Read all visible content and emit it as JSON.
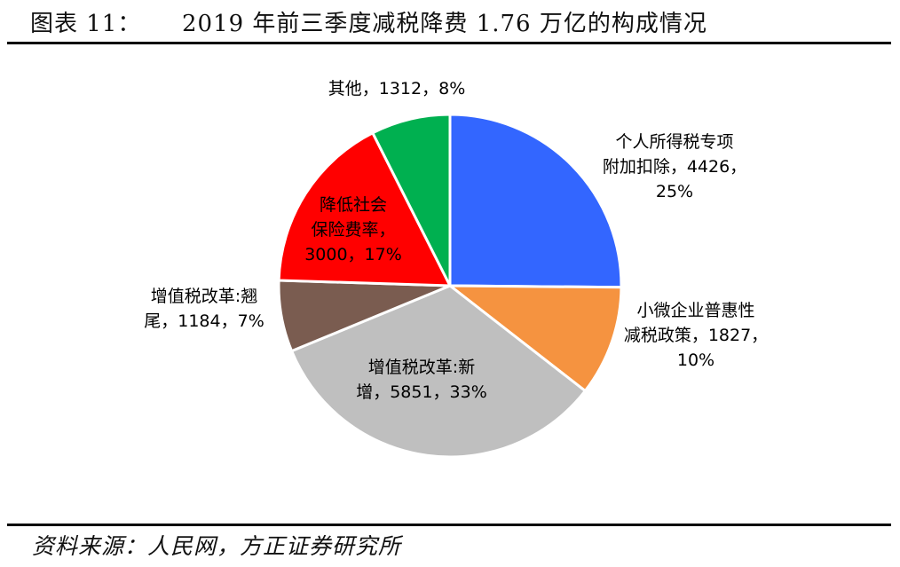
{
  "header": {
    "figure_label": "图表 11：",
    "title": "2019 年前三季度减税降费 1.76 万亿的构成情况"
  },
  "footer": {
    "source": "资料来源：人民网，方正证券研究所"
  },
  "chart_data": {
    "type": "pie",
    "title": "2019 年前三季度减税降费 1.76 万亿的构成情况",
    "slices": [
      {
        "label": "个人所得税专项附加扣除",
        "value": 4426,
        "percent": "25%",
        "color": "#3366ff",
        "label_lines": [
          "个人所得税专项",
          "附加扣除，4426，",
          "25%"
        ]
      },
      {
        "label": "小微企业普惠性减税政策",
        "value": 1827,
        "percent": "10%",
        "color": "#f59340",
        "label_lines": [
          "小微企业普惠性",
          "减税政策，1827，",
          "10%"
        ]
      },
      {
        "label": "增值税改革:新增",
        "value": 5851,
        "percent": "33%",
        "color": "#bfbfbf",
        "label_lines": [
          "增值税改革:新",
          "增，5851，33%"
        ]
      },
      {
        "label": "增值税改革:翘尾",
        "value": 1184,
        "percent": "7%",
        "color": "#7a5c50",
        "label_lines": [
          "增值税改革:翘",
          "尾，1184，7%"
        ]
      },
      {
        "label": "降低社会保险费率",
        "value": 3000,
        "percent": "17%",
        "color": "#ff0000",
        "label_lines": [
          "降低社会",
          "保险费率，",
          "3000，17%"
        ]
      },
      {
        "label": "其他",
        "value": 1312,
        "percent": "8%",
        "color": "#00b050",
        "label_lines": [
          "其他，1312，8%"
        ]
      }
    ]
  }
}
